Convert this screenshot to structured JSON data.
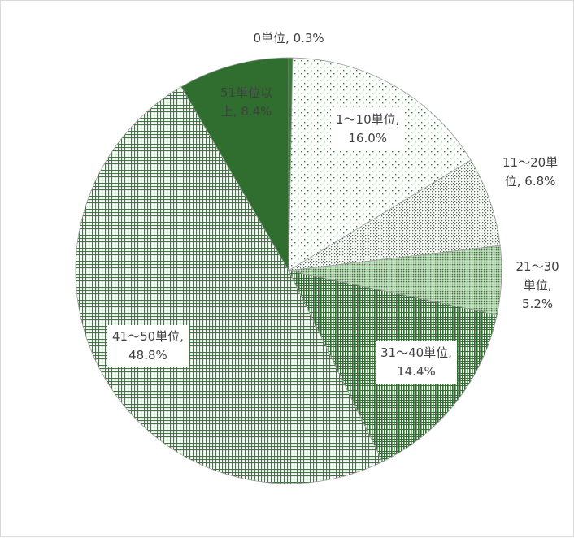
{
  "chart_data": {
    "type": "pie",
    "title": "",
    "start_angle_deg": 0,
    "direction": "clockwise",
    "colors": {
      "primary": "#3a7a3a",
      "dark": "#2f6e2f",
      "outline": "#9a9a9a",
      "label_text": "#404040"
    },
    "slices": [
      {
        "name": "0単位",
        "value": 0.3,
        "label_lines": [
          "0単位, 0.3%"
        ],
        "pattern": "none"
      },
      {
        "name": "1～10単位",
        "value": 16.0,
        "label_lines": [
          "1～10単位,",
          "16.0%"
        ],
        "pattern": "sparse-dots"
      },
      {
        "name": "11～20単位",
        "value": 6.8,
        "label_lines": [
          "11～20単",
          "位, 6.8%"
        ],
        "pattern": "medium-dots"
      },
      {
        "name": "21～30単位",
        "value": 5.2,
        "label_lines": [
          "21～30",
          "単位,",
          "5.2%"
        ],
        "pattern": "dense-dots"
      },
      {
        "name": "31～40単位",
        "value": 14.4,
        "label_lines": [
          "31～40単位,",
          "14.4%"
        ],
        "pattern": "vertical-lines"
      },
      {
        "name": "41～50単位",
        "value": 48.8,
        "label_lines": [
          "41～50単位,",
          "48.8%"
        ],
        "pattern": "grid"
      },
      {
        "name": "51単位以上",
        "value": 8.4,
        "label_lines": [
          "51単位以",
          "上, 8.4%"
        ],
        "pattern": "solid"
      }
    ]
  }
}
